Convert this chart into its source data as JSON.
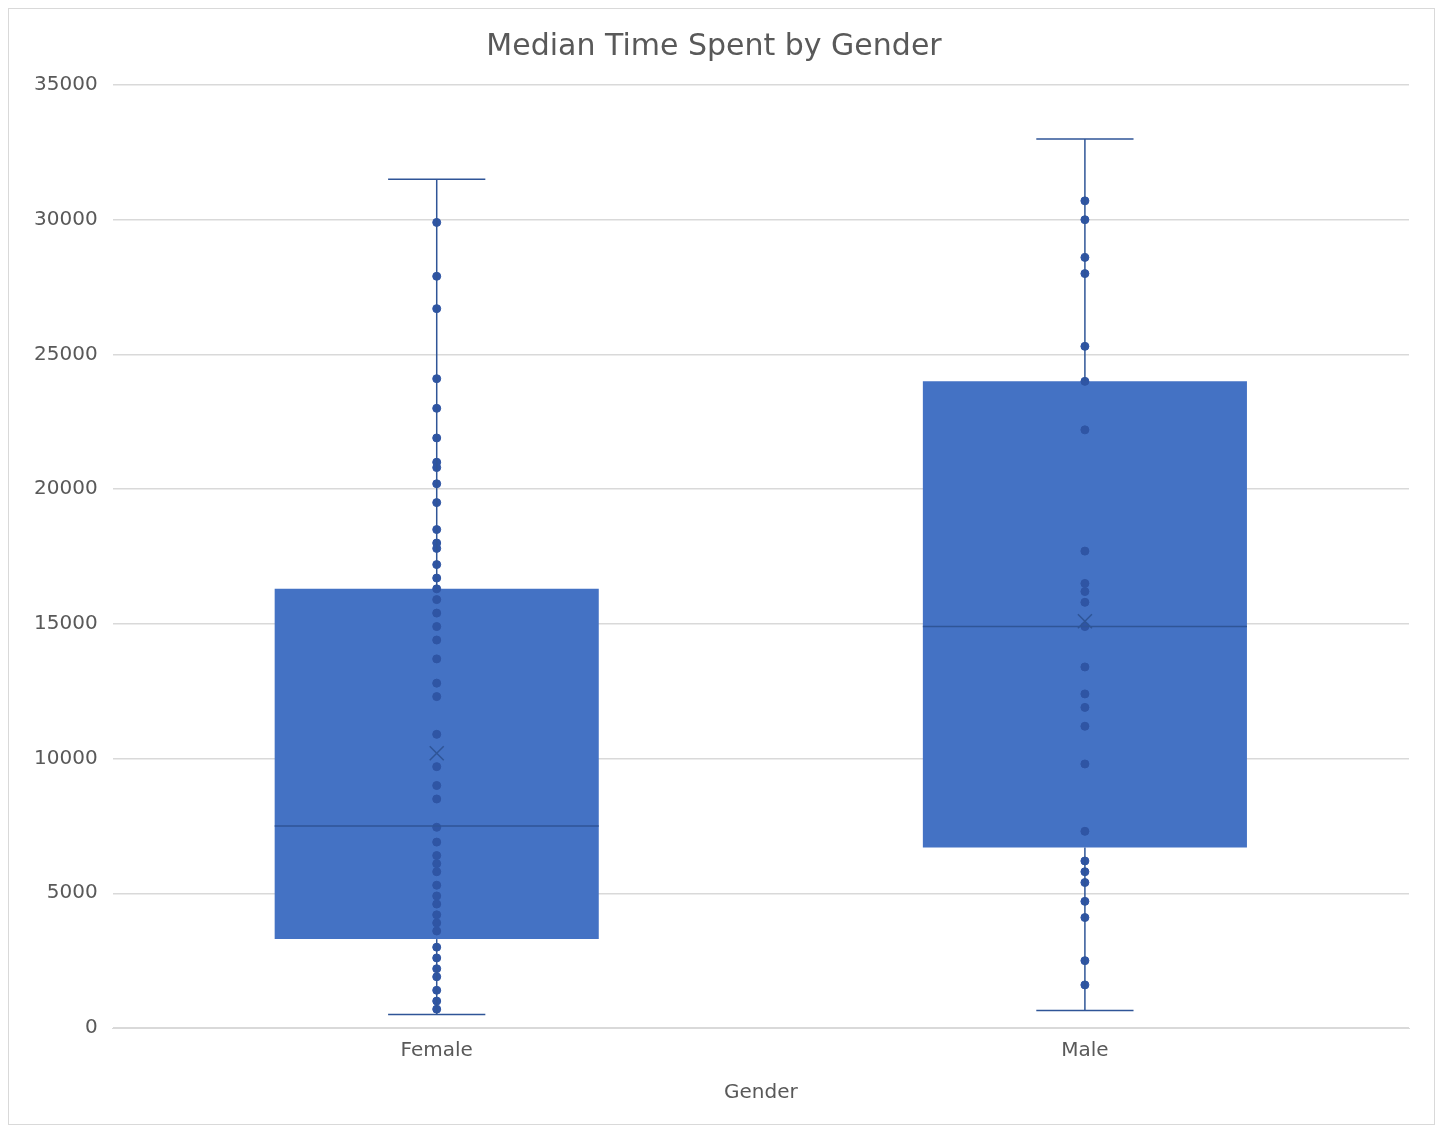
{
  "chart_data": {
    "type": "box",
    "title": "Median Time Spent by Gender",
    "xlabel": "Gender",
    "categories": [
      "Female",
      "Male"
    ],
    "color": "#4472c4",
    "boxes": [
      {
        "low": 500,
        "q1": 3300,
        "median": 7500,
        "q3": 16300,
        "high": 31500,
        "mean": 10200
      },
      {
        "low": 650,
        "q1": 6700,
        "median": 14900,
        "q3": 24000,
        "high": 33000,
        "mean": 15100
      }
    ],
    "series": [
      {
        "type": "scatter",
        "color": "#2f55a4",
        "x": [
          "Female",
          "Female",
          "Female",
          "Female",
          "Female",
          "Female",
          "Female",
          "Female",
          "Female",
          "Female",
          "Female",
          "Female",
          "Female",
          "Female",
          "Female",
          "Female",
          "Female",
          "Female",
          "Female",
          "Female",
          "Female",
          "Female",
          "Female",
          "Female",
          "Female",
          "Female",
          "Female",
          "Female",
          "Female",
          "Female",
          "Female",
          "Female",
          "Female",
          "Female",
          "Female",
          "Female",
          "Female",
          "Female",
          "Female",
          "Female",
          "Female",
          "Female",
          "Female",
          "Female",
          "Female",
          "Male",
          "Male",
          "Male",
          "Male",
          "Male",
          "Male",
          "Male",
          "Male",
          "Male",
          "Male",
          "Male",
          "Male",
          "Male",
          "Male",
          "Male",
          "Male",
          "Male",
          "Male",
          "Male",
          "Male",
          "Male",
          "Male",
          "Male",
          "Male",
          "Male"
        ],
        "values": [
          29900,
          27900,
          26700,
          24100,
          23000,
          21900,
          21000,
          20800,
          20200,
          19500,
          18500,
          18000,
          17800,
          17200,
          16700,
          15900,
          15400,
          14900,
          14400,
          13700,
          12800,
          12300,
          10900,
          9700,
          9000,
          8500,
          7450,
          6900,
          6400,
          6100,
          5800,
          5300,
          4900,
          4600,
          4200,
          3900,
          3600,
          3000,
          2600,
          2200,
          1900,
          1400,
          1000,
          700,
          16300,
          30700,
          30000,
          28600,
          28000,
          25300,
          24000,
          22200,
          17700,
          16500,
          16200,
          15800,
          14900,
          13400,
          12400,
          11900,
          11200,
          9800,
          7300,
          6200,
          5800,
          5400,
          4700,
          4100,
          2500,
          1600
        ]
      }
    ],
    "ylim": [
      0,
      35000
    ],
    "yticks": [
      0,
      5000,
      10000,
      15000,
      20000,
      25000,
      30000,
      35000
    ],
    "grid": "y",
    "legend": false,
    "marker": "circle"
  }
}
